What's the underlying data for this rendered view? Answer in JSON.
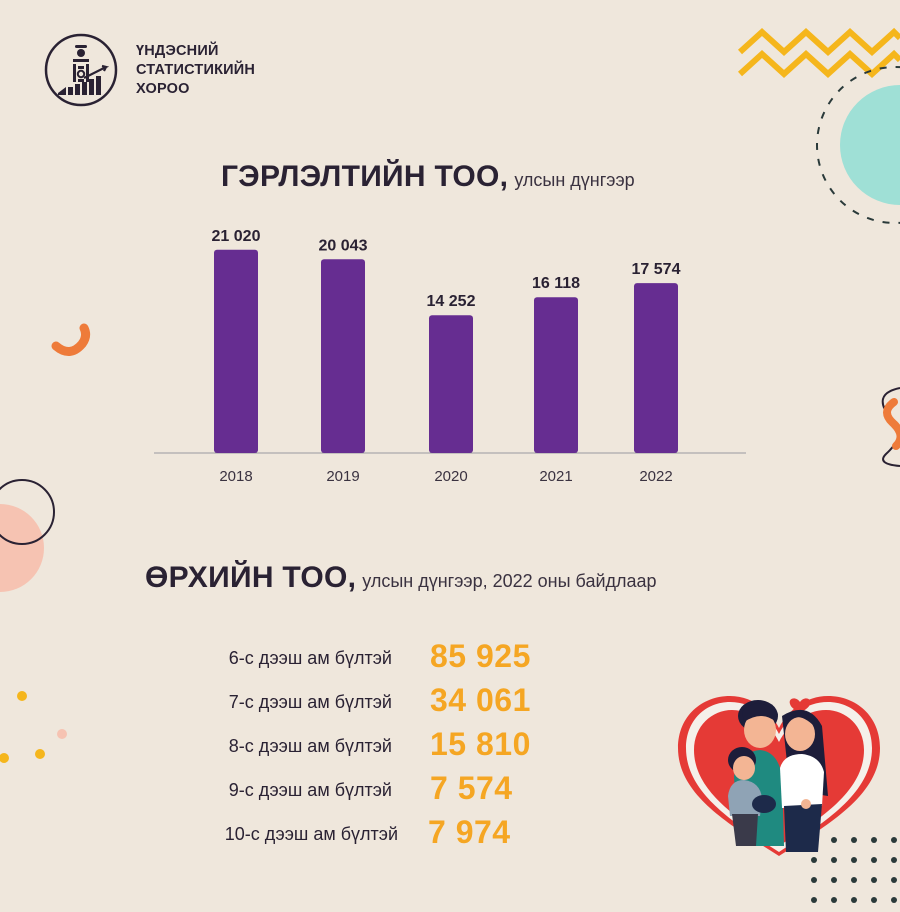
{
  "organization": {
    "name_lines": [
      "ҮНДЭСНИЙ",
      "СТАТИСТИКИЙН",
      "ХОРОО"
    ]
  },
  "marriage_section": {
    "title_main": "ГЭРЛЭЛТИЙН ТОО,",
    "title_sub": "улсын дүнгээр"
  },
  "household_section": {
    "title_main": "ӨРХИЙН ТОО,",
    "title_sub": "улсын дүнгээр, 2022 оны байдлаар",
    "rows": [
      {
        "label": "6-с дээш ам бүлтэй",
        "value": "85 925"
      },
      {
        "label": "7-с дээш ам бүлтэй",
        "value": "34 061"
      },
      {
        "label": "8-с дээш ам бүлтэй",
        "value": "15 810"
      },
      {
        "label": "9-с дээш ам бүлтэй",
        "value": "7 574"
      },
      {
        "label": "10-с дээш ам бүлтэй",
        "value": "7 974"
      }
    ]
  },
  "colors": {
    "background": "#efe7dc",
    "bar": "#662d91",
    "accent_yellow": "#f5a623",
    "accent_orange": "#ee7b3a",
    "accent_teal": "#9fe0d6",
    "accent_pink": "#f6c3b2",
    "heart_red": "#e53a36"
  },
  "chart_data": {
    "type": "bar",
    "title": "ГЭРЛЭЛТИЙН ТОО, улсын дүнгээр",
    "categories": [
      "2018",
      "2019",
      "2020",
      "2021",
      "2022"
    ],
    "values": [
      21020,
      20043,
      14252,
      16118,
      17574
    ],
    "value_labels": [
      "21 020",
      "20 043",
      "14 252",
      "16 118",
      "17 574"
    ],
    "ylim": [
      0,
      24000
    ],
    "grid": false,
    "legend": "none"
  },
  "illustration": {
    "name": "family-heart-illustration"
  }
}
